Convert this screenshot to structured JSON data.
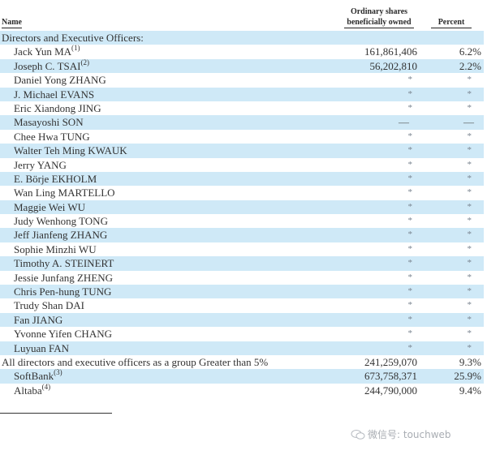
{
  "header": {
    "name": "Name",
    "shares_line1": "Ordinary shares",
    "shares_line2": "beneficially owned",
    "percent": "Percent"
  },
  "section_title": "Directors and Executive Officers:",
  "rows": [
    {
      "name": "Jack Yun MA",
      "note": "(1)",
      "shares": "161,861,406",
      "percent": "6.2%"
    },
    {
      "name": "Joseph C. TSAI",
      "note": "(2)",
      "shares": "56,202,810",
      "percent": "2.2%"
    },
    {
      "name": "Daniel Yong ZHANG",
      "note": "",
      "shares": "*",
      "percent": "*"
    },
    {
      "name": "J. Michael EVANS",
      "note": "",
      "shares": "*",
      "percent": "*"
    },
    {
      "name": "Eric Xiandong JING",
      "note": "",
      "shares": "*",
      "percent": "*"
    },
    {
      "name": "Masayoshi SON",
      "note": "",
      "shares": "—",
      "percent": "—"
    },
    {
      "name": "Chee Hwa TUNG",
      "note": "",
      "shares": "*",
      "percent": "*"
    },
    {
      "name": "Walter Teh Ming KWAUK",
      "note": "",
      "shares": "*",
      "percent": "*"
    },
    {
      "name": "Jerry YANG",
      "note": "",
      "shares": "*",
      "percent": "*"
    },
    {
      "name": "E. Börje EKHOLM",
      "note": "",
      "shares": "*",
      "percent": "*"
    },
    {
      "name": "Wan Ling MARTELLO",
      "note": "",
      "shares": "*",
      "percent": "*"
    },
    {
      "name": "Maggie Wei WU",
      "note": "",
      "shares": "*",
      "percent": "*"
    },
    {
      "name": "Judy Wenhong TONG",
      "note": "",
      "shares": "*",
      "percent": "*"
    },
    {
      "name": "Jeff Jianfeng ZHANG",
      "note": "",
      "shares": "*",
      "percent": "*"
    },
    {
      "name": "Sophie Minzhi WU",
      "note": "",
      "shares": "*",
      "percent": "*"
    },
    {
      "name": "Timothy A. STEINERT",
      "note": "",
      "shares": "*",
      "percent": "*"
    },
    {
      "name": "Jessie Junfang ZHENG",
      "note": "",
      "shares": "*",
      "percent": "*"
    },
    {
      "name": "Chris Pen-hung TUNG",
      "note": "",
      "shares": "*",
      "percent": "*"
    },
    {
      "name": "Trudy Shan DAI",
      "note": "",
      "shares": "*",
      "percent": "*"
    },
    {
      "name": "Fan JIANG",
      "note": "",
      "shares": "*",
      "percent": "*"
    },
    {
      "name": "Yvonne Yifen CHANG",
      "note": "",
      "shares": "*",
      "percent": "*"
    },
    {
      "name": "Luyuan FAN",
      "note": "",
      "shares": "*",
      "percent": "*"
    }
  ],
  "group_row": {
    "name": "All directors and executive officers as a group Greater than 5%",
    "shares": "241,259,070",
    "percent": "9.3%"
  },
  "holders": [
    {
      "name": "SoftBank",
      "note": "(3)",
      "shares": "673,758,371",
      "percent": "25.9%"
    },
    {
      "name": "Altaba",
      "note": "(4)",
      "shares": "244,790,000",
      "percent": "9.4%"
    }
  ],
  "watermark": {
    "icon": "wechat-icon",
    "text": "微信号: touchweb"
  },
  "colors": {
    "stripe": "#cfe9f7",
    "text": "#333333",
    "asterisk": "#7b8591"
  }
}
